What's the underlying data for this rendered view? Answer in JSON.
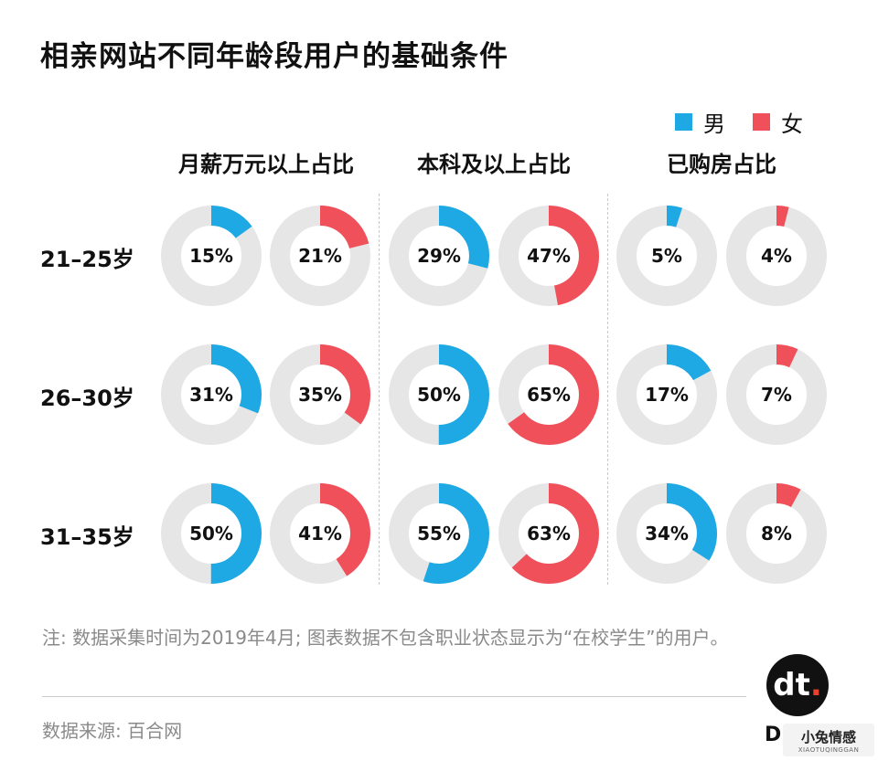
{
  "title": "相亲网站不同年龄段用户的基础条件",
  "legend": [
    {
      "label": "男",
      "color": "#1ea8e4"
    },
    {
      "label": "女",
      "color": "#f0505a"
    }
  ],
  "colors": {
    "track": "#e6e6e6",
    "male": "#1ea8e4",
    "female": "#f0505a"
  },
  "chart_data": {
    "type": "donut",
    "columns": [
      "月薪万元以上占比",
      "本科及以上占比",
      "已购房占比"
    ],
    "rows": [
      "21–25岁",
      "26–30岁",
      "31–35岁"
    ],
    "series": [
      {
        "name": "男",
        "values": [
          [
            15,
            29,
            5
          ],
          [
            31,
            50,
            17
          ],
          [
            50,
            55,
            34
          ]
        ]
      },
      {
        "name": "女",
        "values": [
          [
            21,
            47,
            4
          ],
          [
            35,
            65,
            7
          ],
          [
            41,
            63,
            8
          ]
        ]
      }
    ],
    "unit": "%"
  },
  "note": "注: 数据采集时间为2019年4月; 图表数据不包含职业状态显示为“在校学生”的用户。",
  "source": "数据来源: 百合网",
  "brand": {
    "logo_text": "dt",
    "letter": "D",
    "watermark_main": "小兔情感",
    "watermark_sub": "XIAOTUQINGGAN"
  }
}
